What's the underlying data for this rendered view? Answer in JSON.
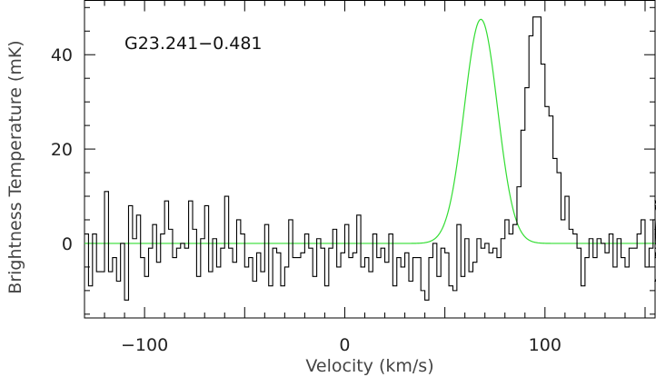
{
  "chart_data": {
    "type": "line",
    "annotation": "G23.241−0.481",
    "xlabel": "Velocity (km/s)",
    "ylabel": "Brightness Temperature (mK)",
    "xlim": [
      -130,
      155
    ],
    "ylim": [
      -15.8,
      51.5
    ],
    "xticks": [
      {
        "value": -100,
        "label": "−100"
      },
      {
        "value": 0,
        "label": "0"
      },
      {
        "value": 100,
        "label": "100"
      }
    ],
    "yticks": [
      {
        "value": 0,
        "label": "0"
      },
      {
        "value": 20,
        "label": "20"
      },
      {
        "value": 40,
        "label": "40"
      }
    ],
    "series": [
      {
        "style": "step",
        "color": "#000000",
        "x_start": -130,
        "x_step": 2.0,
        "values": [
          2,
          -9,
          2,
          -6,
          -6,
          11,
          -6,
          -3,
          -8,
          0,
          -12,
          8,
          1,
          6,
          -3,
          -7,
          -1,
          4,
          -4,
          2,
          9,
          3,
          -3,
          -1,
          0,
          -1,
          9,
          3,
          -7,
          1,
          8,
          -6,
          1,
          -5,
          -1,
          10,
          -1,
          -4,
          5,
          2,
          -5,
          -3,
          -8,
          -2,
          -6,
          4,
          -9,
          -1,
          -2,
          -9,
          -5,
          5,
          -3,
          -3,
          -2,
          2,
          -1,
          -7,
          1,
          -1,
          -9,
          -1,
          3,
          -5,
          -2,
          4,
          -3,
          -2,
          6,
          -5,
          -3,
          -6,
          2,
          -3,
          -1,
          -4,
          2,
          -9,
          -3,
          -5,
          -2,
          -8,
          -3,
          -3,
          -10,
          -12,
          -3,
          0,
          -7,
          -1,
          -2,
          -9,
          -10,
          4,
          -7,
          1,
          -6,
          -4,
          1,
          -1,
          0,
          -2,
          -1,
          -3,
          1,
          5,
          2,
          4,
          12,
          24,
          33,
          44,
          48,
          48,
          38,
          29,
          27,
          18,
          15,
          5,
          10,
          3,
          2,
          -1,
          -9,
          -3,
          1,
          -3,
          1,
          0,
          -2,
          2,
          -5,
          1,
          -3,
          -5,
          -1,
          -1,
          2,
          5,
          -5,
          -1,
          5,
          -3,
          2,
          9,
          3,
          8,
          -8,
          0,
          -2,
          -1
        ]
      },
      {
        "style": "gaussian-fit",
        "color": "#33dd33",
        "amplitude": 47.5,
        "center": 68,
        "fwhm": 19.5,
        "offset": 0
      }
    ]
  }
}
